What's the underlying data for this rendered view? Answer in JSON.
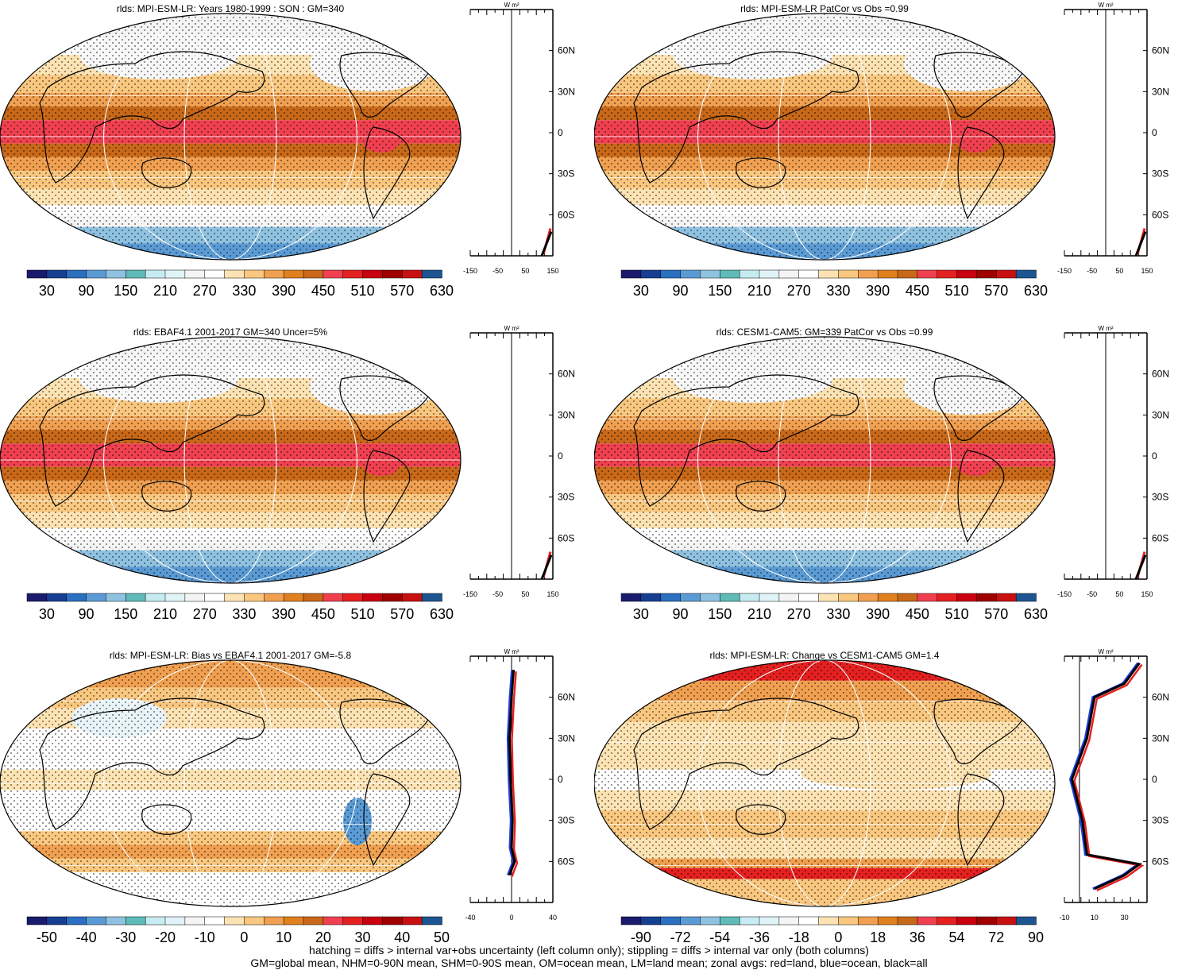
{
  "panels": [
    {
      "title": "rlds: MPI-ESM-LR: Years 1980-1999 : SON : GM=340",
      "kind": "clim"
    },
    {
      "title": "rlds: MPI-ESM-LR PatCor vs Obs =0.99",
      "kind": "clim"
    },
    {
      "title": "rlds: EBAF4.1 2001-2017 GM=340 Uncer=5%",
      "kind": "clim"
    },
    {
      "title": "rlds: CESM1-CAM5: GM=339 PatCor vs Obs =0.99",
      "kind": "clim"
    },
    {
      "title": "rlds: MPI-ESM-LR: Bias vs EBAF4.1 2001-2017  GM=-5.8",
      "kind": "bias"
    },
    {
      "title": "rlds: MPI-ESM-LR: Change vs CESM1-CAM5 GM=1.4",
      "kind": "change"
    }
  ],
  "colorbars": {
    "clim": [
      "30",
      "90",
      "150",
      "210",
      "270",
      "330",
      "390",
      "450",
      "510",
      "570",
      "630"
    ],
    "bias": [
      "-50",
      "-40",
      "-30",
      "-20",
      "-10",
      "0",
      "10",
      "20",
      "30",
      "40",
      "50"
    ],
    "change": [
      "-90",
      "-72",
      "-54",
      "-36",
      "-18",
      "0",
      "18",
      "36",
      "54",
      "72",
      "90"
    ]
  },
  "palette": [
    "#1a1a6e",
    "#163f91",
    "#2a6fc0",
    "#5b9bd5",
    "#8fc2e0",
    "#5ebbb8",
    "#c6ecf2",
    "#e0f4f8",
    "#f4f4f4",
    "#ffffff",
    "#fde3b3",
    "#f9c77f",
    "#f0a050",
    "#e0801e",
    "#c86818",
    "#f04050",
    "#e52020",
    "#c80010",
    "#a00000",
    "#c81010",
    "#e01818",
    "#1d5592"
  ],
  "colors": {
    "land": "#e52222",
    "ocean": "#1f3fe0",
    "all": "#000000"
  },
  "zonal_axis": {
    "unit_label": "W m²",
    "lat_labels": [
      "60N",
      "30N",
      "0",
      "30S",
      "60S"
    ],
    "clim_ticks": [
      "-150",
      "-50",
      "50",
      "150"
    ],
    "bias_ticks": [
      "-40",
      "0",
      "40"
    ],
    "change_ticks": [
      "-10",
      "10",
      "30"
    ]
  },
  "footer": {
    "line1": "hatching = diffs > internal var+obs uncertainty (left column only); stippling = diffs > internal var only (both columns)",
    "line2": "GM=global mean, NHM=0-90N mean, SHM=0-90S mean, OM=ocean mean, LM=land mean; zonal avgs: red=land, blue=ocean, black=all"
  },
  "chart_data": [
    {
      "type": "heatmap",
      "title": "rlds: MPI-ESM-LR: Years 1980-1999 : SON : GM=340",
      "colorbar_labels": [
        30,
        90,
        150,
        210,
        270,
        330,
        390,
        450,
        510,
        570,
        630
      ],
      "zonal_xlim": [
        -150,
        150
      ]
    },
    {
      "type": "heatmap",
      "title": "rlds: MPI-ESM-LR PatCor vs Obs =0.99",
      "colorbar_labels": [
        30,
        90,
        150,
        210,
        270,
        330,
        390,
        450,
        510,
        570,
        630
      ],
      "zonal_xlim": [
        -150,
        150
      ]
    },
    {
      "type": "heatmap",
      "title": "rlds: EBAF4.1 2001-2017 GM=340 Uncer=5%",
      "colorbar_labels": [
        30,
        90,
        150,
        210,
        270,
        330,
        390,
        450,
        510,
        570,
        630
      ],
      "zonal_xlim": [
        -150,
        150
      ]
    },
    {
      "type": "heatmap",
      "title": "rlds: CESM1-CAM5: GM=339 PatCor vs Obs =0.99",
      "colorbar_labels": [
        30,
        90,
        150,
        210,
        270,
        330,
        390,
        450,
        510,
        570,
        630
      ],
      "zonal_xlim": [
        -150,
        150
      ]
    },
    {
      "type": "heatmap",
      "title": "rlds: MPI-ESM-LR: Bias vs EBAF4.1 2001-2017  GM=-5.8",
      "colorbar_labels": [
        -50,
        -40,
        -30,
        -20,
        -10,
        0,
        10,
        20,
        30,
        40,
        50
      ],
      "zonal_xlim": [
        -40,
        40
      ],
      "zonal_lat": [
        80,
        60,
        30,
        0,
        -30,
        -50,
        -60,
        -70
      ],
      "zonal_all": [
        2,
        0,
        -2,
        -1,
        1,
        0,
        3,
        -2
      ]
    },
    {
      "type": "heatmap",
      "title": "rlds: MPI-ESM-LR: Change vs CESM1-CAM5 GM=1.4",
      "colorbar_labels": [
        -90,
        -72,
        -54,
        -36,
        -18,
        0,
        18,
        36,
        54,
        72,
        90
      ],
      "zonal_xlim": [
        -10,
        45
      ],
      "zonal_lat": [
        85,
        70,
        60,
        30,
        0,
        -30,
        -55,
        -62,
        -70,
        -80
      ],
      "zonal_all": [
        40,
        30,
        10,
        5,
        -5,
        2,
        5,
        40,
        30,
        10
      ]
    }
  ]
}
